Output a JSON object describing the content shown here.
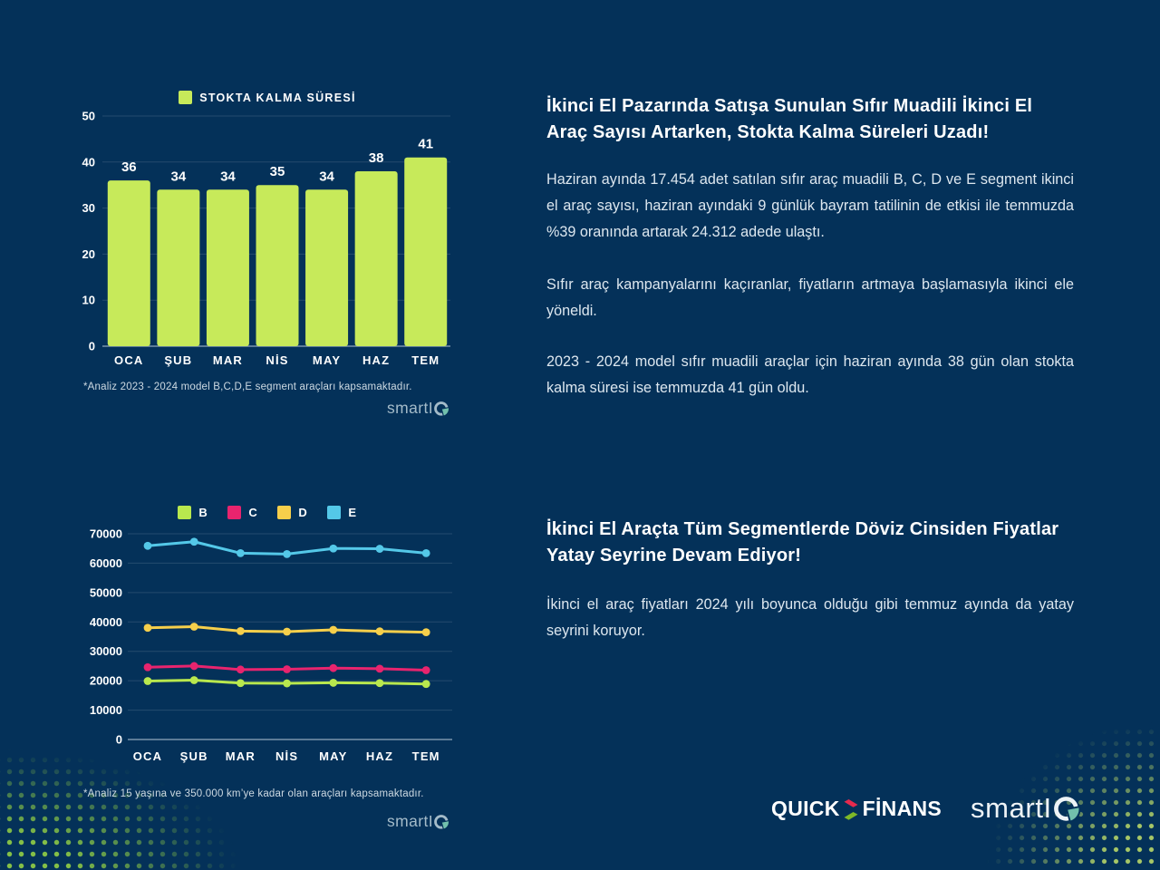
{
  "colors": {
    "background": "#043159",
    "bar_green": "#c7ea5a",
    "series_b": "#b9e84e",
    "series_c": "#e8246e",
    "series_d": "#f6cf4b",
    "series_e": "#54c8e8",
    "smartiq_teal": "#72c0ac",
    "quick_red": "#e62a4e",
    "quick_green": "#7db928",
    "dots_green": "#84bf47"
  },
  "bar_section": {
    "footnote": "*Analiz 2023 - 2024 model B,C,D,E segment araçları kapsamaktadır."
  },
  "line_section": {
    "footnote": "*Analiz 15 yaşına ve 350.000 km’ye kadar olan araçları kapsamaktadır."
  },
  "right_column": {
    "title1": "İkinci El Pazarında Satışa Sunulan Sıfır Muadili İkinci El Araç Sayısı Artarken, Stokta Kalma Süreleri Uzadı!",
    "para1": "Haziran ayında 17.454 adet satılan sıfır araç muadili B, C, D ve E segment ikinci el araç sayısı, haziran ayındaki 9 günlük bayram tatilinin de etkisi ile temmuzda %39 oranında artarak 24.312 adede ulaştı.",
    "para2": "Sıfır araç kampanyalarını kaçıranlar, fiyatların artmaya başlamasıyla ikinci ele yöneldi.",
    "para3": "2023 - 2024 model sıfır muadili araçlar için haziran ayında 38 gün olan stokta kalma süresi ise temmuzda 41 gün oldu.",
    "title2": "İkinci El Araçta Tüm Segmentlerde Döviz Cinsiden Fiyatlar Yatay Seyrine Devam Ediyor!",
    "para4": "İkinci el araç fiyatları 2024 yılı boyunca olduğu gibi temmuz ayında da yatay seyrini koruyor."
  },
  "brands": {
    "smartiq": {
      "name": "smartIQ",
      "display_prefix": "smartI"
    },
    "quickfinans": {
      "quick": "QUICK",
      "finans": "FİNANS"
    }
  },
  "chart_data": [
    {
      "type": "bar",
      "title": "STOKTA KALMA SÜRESİ",
      "categories": [
        "OCA",
        "ŞUB",
        "MAR",
        "NİS",
        "MAY",
        "HAZ",
        "TEM"
      ],
      "values": [
        36,
        34,
        34,
        35,
        34,
        38,
        41
      ],
      "ylim": [
        0,
        50
      ],
      "yticks": [
        0,
        10,
        20,
        30,
        40,
        50
      ],
      "bar_color": "#c7ea5a",
      "grid": true,
      "legend_position": "top",
      "xlabel": "",
      "ylabel": ""
    },
    {
      "type": "line",
      "title": "",
      "categories": [
        "OCA",
        "ŞUB",
        "MAR",
        "NİS",
        "MAY",
        "HAZ",
        "TEM"
      ],
      "series": [
        {
          "name": "B",
          "color": "#b9e84e",
          "values": [
            19900,
            20200,
            19200,
            19100,
            19300,
            19200,
            18900
          ]
        },
        {
          "name": "C",
          "color": "#e8246e",
          "values": [
            24600,
            25000,
            23800,
            23900,
            24300,
            24100,
            23600
          ]
        },
        {
          "name": "D",
          "color": "#f6cf4b",
          "values": [
            38000,
            38400,
            36900,
            36700,
            37300,
            36800,
            36500
          ]
        },
        {
          "name": "E",
          "color": "#54c8e8",
          "values": [
            65900,
            67300,
            63400,
            63100,
            65000,
            64900,
            63400
          ]
        }
      ],
      "ylim": [
        0,
        70000
      ],
      "yticks": [
        0,
        10000,
        20000,
        30000,
        40000,
        50000,
        60000,
        70000
      ],
      "grid": true,
      "legend_position": "top",
      "xlabel": "",
      "ylabel": ""
    }
  ]
}
